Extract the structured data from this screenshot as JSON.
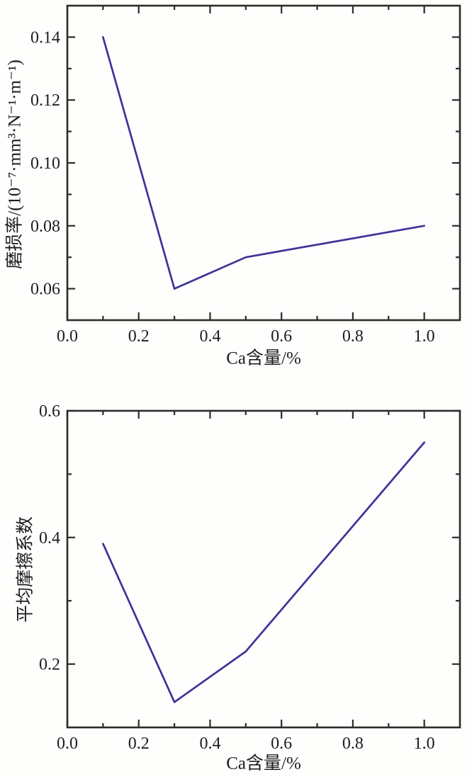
{
  "figure": {
    "description": "Two stacked line charts versus Ca content",
    "background": "#fefefd"
  },
  "colors": {
    "axis": "#2e2b28",
    "text": "#1f1d1b",
    "line": "#3c3496"
  },
  "chart_data": [
    {
      "id": "wear-rate",
      "type": "line",
      "title": "",
      "xlabel": "Ca含量/%",
      "ylabel": "磨损率/(10⁻⁷·mm³·N⁻¹·m⁻¹)",
      "x": [
        0.1,
        0.3,
        0.5,
        1.0
      ],
      "y": [
        0.14,
        0.06,
        0.07,
        0.08
      ],
      "xlim": [
        0,
        1.1
      ],
      "ylim": [
        0.05,
        0.15
      ],
      "grid": false,
      "legend": null,
      "line_color": "#3c3496",
      "xticks": {
        "major": [
          0.0,
          0.2,
          0.4,
          0.6,
          0.8,
          1.0
        ],
        "labels": [
          "0.0",
          "0.2",
          "0.4",
          "0.6",
          "0.8",
          "1.0"
        ],
        "minor": [
          0.1,
          0.3,
          0.5,
          0.7,
          0.9
        ]
      },
      "yticks": {
        "major": [
          0.06,
          0.08,
          0.1,
          0.12,
          0.14
        ],
        "labels": [
          "0.06",
          "0.08",
          "0.10",
          "0.12",
          "0.14"
        ],
        "minor": [
          0.07,
          0.09,
          0.11,
          0.13
        ]
      }
    },
    {
      "id": "friction-coefficient",
      "type": "line",
      "title": "",
      "xlabel": "Ca含量/%",
      "ylabel": "平均摩擦系数",
      "x": [
        0.1,
        0.3,
        0.5,
        1.0
      ],
      "y": [
        0.39,
        0.14,
        0.22,
        0.55
      ],
      "xlim": [
        0,
        1.1
      ],
      "ylim": [
        0.1,
        0.6
      ],
      "grid": false,
      "legend": null,
      "line_color": "#3c3496",
      "xticks": {
        "major": [
          0.0,
          0.2,
          0.4,
          0.6,
          0.8,
          1.0
        ],
        "labels": [
          "0.0",
          "0.2",
          "0.4",
          "0.6",
          "0.8",
          "1.0"
        ],
        "minor": [
          0.1,
          0.3,
          0.5,
          0.7,
          0.9
        ]
      },
      "yticks": {
        "major": [
          0.2,
          0.4,
          0.6
        ],
        "labels": [
          "0.2",
          "0.4",
          "0.6"
        ],
        "minor": [
          0.3,
          0.5
        ]
      }
    }
  ]
}
